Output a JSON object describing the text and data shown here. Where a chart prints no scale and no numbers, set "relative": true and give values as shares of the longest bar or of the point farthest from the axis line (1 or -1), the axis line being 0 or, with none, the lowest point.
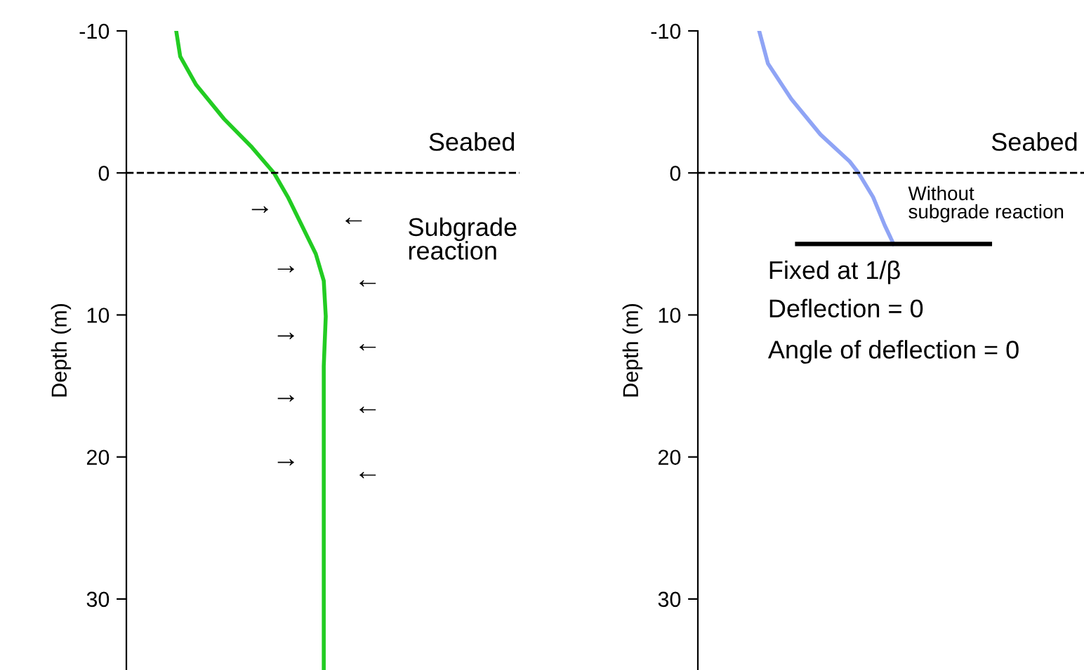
{
  "chart_data": [
    {
      "type": "line",
      "orientation": "horizontal",
      "relative": true,
      "ylabel": "Depth (m)",
      "ylim": [
        35,
        -10
      ],
      "yticks": [
        -10,
        0,
        10,
        20,
        30
      ],
      "grid": false,
      "legend": false,
      "marker": "none",
      "line_style": "solid",
      "series": [
        {
          "color": "#22cc22",
          "x": [
            -10,
            -8.2,
            -6.2,
            -3.8,
            -1.8,
            0,
            1.7,
            3.7,
            5.7,
            7.6,
            10.1,
            13.6,
            17.5,
            22.5,
            27.4,
            35
          ],
          "values": [
            0.25,
            0.27,
            0.35,
            0.49,
            0.63,
            0.74,
            0.81,
            0.88,
            0.95,
            0.99,
            1,
            0.99,
            0.99,
            0.99,
            0.99,
            0.99
          ]
        }
      ],
      "ref_lines": [
        {
          "axis": "y",
          "value": 0,
          "label": "Seabed",
          "color": "#000000",
          "line_style": "dashed"
        }
      ],
      "annotations": [
        "Subgrade\nreaction",
        "→",
        "→",
        "→",
        "→",
        "→",
        "←",
        "←",
        "←",
        "←",
        "←"
      ]
    },
    {
      "type": "line",
      "orientation": "horizontal",
      "relative": true,
      "ylabel": "Depth (m)",
      "ylim": [
        35,
        -10
      ],
      "yticks": [
        -10,
        0,
        10,
        20,
        30
      ],
      "grid": false,
      "legend": false,
      "marker": "none",
      "line_style": "solid",
      "series": [
        {
          "color": "#8fa4f5",
          "x": [
            -10,
            -7.7,
            -5.2,
            -2.7,
            -0.8,
            0,
            1.7,
            3.7,
            5
          ],
          "values": [
            0.21,
            0.24,
            0.32,
            0.42,
            0.52,
            0.55,
            0.6,
            0.64,
            0.67
          ]
        },
        {
          "color": "#000000",
          "x": [
            5,
            5
          ],
          "values": [
            0.34,
            1
          ]
        }
      ],
      "ref_lines": [
        {
          "axis": "y",
          "value": 0,
          "label": "Seabed",
          "color": "#000000",
          "line_style": "dashed"
        }
      ],
      "annotations": [
        "Without\nsubgrade reaction",
        "Fixed at 1/β",
        "Deflection = 0",
        "Angle of deflection = 0"
      ]
    }
  ]
}
